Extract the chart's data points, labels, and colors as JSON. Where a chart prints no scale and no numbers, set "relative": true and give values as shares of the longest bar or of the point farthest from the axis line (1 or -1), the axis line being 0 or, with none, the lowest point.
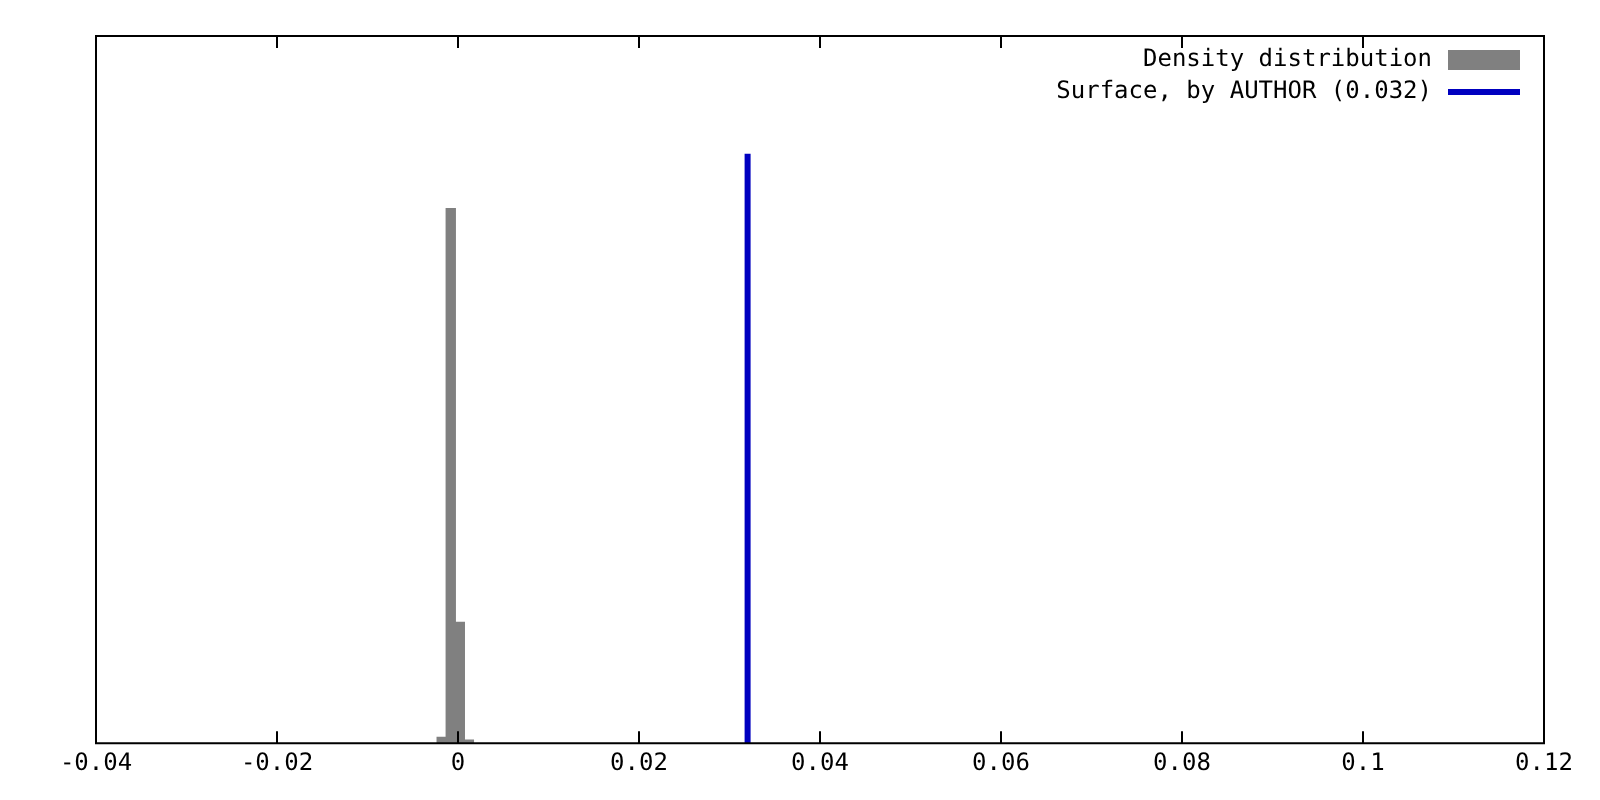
{
  "chart_data": {
    "type": "histogram",
    "relative": true,
    "bins": [
      -0.0023,
      -0.0013,
      -0.0003,
      0.0007,
      0.0017
    ],
    "series": [
      {
        "name": "Density distribution",
        "color": "#808080",
        "values": [
          0.01,
          0.907,
          0.205,
          0.005
        ]
      },
      {
        "name": "Surface, by AUTHOR (0.032)",
        "type": "line",
        "color": "#0000c0",
        "x": [
          0.032,
          0.032
        ],
        "values": [
          0,
          1
        ]
      }
    ],
    "xlim": [
      -0.04,
      0.12
    ],
    "xticks": [
      -0.04,
      -0.02,
      0,
      0.02,
      0.04,
      0.06,
      0.08,
      0.1,
      0.12
    ],
    "grid": false,
    "legend": "top right",
    "marker": "none",
    "line_style": "solid"
  }
}
